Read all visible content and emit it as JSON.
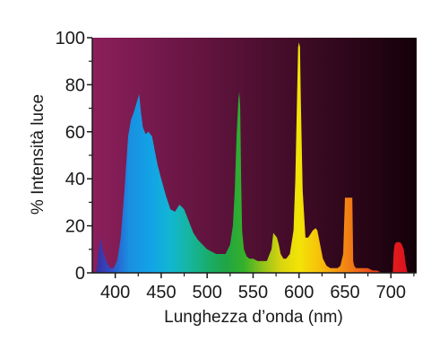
{
  "chart_data": {
    "type": "area",
    "title": "",
    "xlabel": "Lunghezza d’onda (nm)",
    "ylabel": "% Intensità luce",
    "xlim": [
      375,
      728
    ],
    "ylim": [
      0,
      100
    ],
    "xticks": [
      400,
      450,
      500,
      550,
      600,
      650,
      700
    ],
    "yticks": [
      0,
      20,
      40,
      60,
      80,
      100
    ],
    "grid": false,
    "legend": "none",
    "colors": {
      "background_left": "#8c1f5c",
      "background_right": "#140008",
      "axis": "#1a1a1a"
    },
    "series": [
      {
        "x": [
          378,
          380,
          382,
          384,
          386,
          390,
          394,
          398,
          402,
          406,
          410,
          414,
          417,
          420,
          423,
          426,
          428,
          430,
          433,
          436,
          440,
          443,
          446,
          450,
          455,
          460,
          465,
          470,
          475,
          480,
          485,
          490,
          495,
          500,
          505,
          510,
          515,
          520,
          525,
          528,
          530,
          532,
          534,
          535,
          536,
          537,
          538,
          540,
          543,
          546,
          550,
          555,
          560,
          565,
          570,
          572,
          574,
          576,
          578,
          580,
          583,
          586,
          590,
          594,
          596,
          598,
          599,
          600,
          601,
          602,
          604,
          607,
          610,
          615,
          618,
          620,
          623,
          626,
          630,
          634,
          638,
          642,
          645,
          648,
          650,
          652,
          653,
          654,
          656,
          658,
          659,
          660,
          662,
          665,
          670,
          675,
          680,
          685,
          690,
          695,
          700,
          702,
          703,
          704,
          706,
          708,
          710,
          712,
          714,
          716,
          718,
          722
        ],
        "y": [
          0,
          2,
          10,
          15,
          10,
          5,
          2,
          2,
          5,
          15,
          35,
          58,
          65,
          68,
          72,
          76,
          68,
          62,
          59,
          60,
          58,
          52,
          46,
          40,
          33,
          27,
          26,
          29,
          27,
          22,
          17,
          14,
          12,
          10,
          9,
          8,
          8,
          8,
          12,
          20,
          35,
          58,
          74,
          77,
          70,
          40,
          18,
          10,
          7,
          6,
          6,
          5,
          5,
          5,
          10,
          17,
          16,
          15,
          12,
          8,
          6,
          6,
          8,
          18,
          40,
          78,
          96,
          98,
          96,
          72,
          35,
          15,
          15,
          18,
          19,
          18,
          12,
          6,
          3,
          2,
          2,
          2,
          3,
          8,
          32,
          32,
          32,
          32,
          32,
          32,
          5,
          3,
          2,
          2,
          2,
          2,
          1,
          1,
          0,
          0,
          0,
          0,
          9,
          12,
          13,
          13,
          13,
          12,
          10,
          4,
          0,
          0
        ]
      }
    ]
  }
}
